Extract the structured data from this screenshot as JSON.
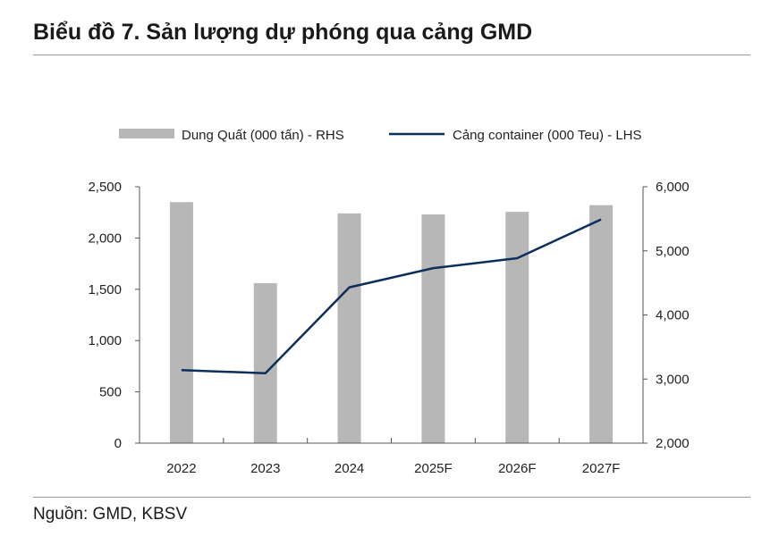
{
  "title": "Biểu đồ 7. Sản lượng dự phóng qua cảng GMD",
  "source": "Nguồn: GMD, KBSV",
  "chart_data": {
    "type": "bar+line",
    "categories": [
      "2022",
      "2023",
      "2024",
      "2025F",
      "2026F",
      "2027F"
    ],
    "series": [
      {
        "name": "Dung Quất (000 tấn) - RHS",
        "type": "bar",
        "axis": "left",
        "color": "#b7b7b7",
        "values": [
          2350,
          1560,
          2240,
          2230,
          2255,
          2320
        ]
      },
      {
        "name": "Cảng container (000 Teu) - LHS",
        "type": "line",
        "axis": "right",
        "color": "#0d2f5a",
        "values": [
          3140,
          3090,
          4430,
          4730,
          4885,
          5490
        ]
      }
    ],
    "left_axis": {
      "range": [
        0,
        2500
      ],
      "ticks": [
        0,
        500,
        1000,
        1500,
        2000,
        2500
      ],
      "tick_labels": [
        "0",
        "500",
        "1,000",
        "1,500",
        "2,000",
        "2,500"
      ]
    },
    "right_axis": {
      "range": [
        2000,
        6000
      ],
      "ticks": [
        2000,
        3000,
        4000,
        5000,
        6000
      ],
      "tick_labels": [
        "2,000",
        "3,000",
        "4,000",
        "5,000",
        "6,000"
      ]
    },
    "grid": false,
    "legend_position": "top"
  }
}
